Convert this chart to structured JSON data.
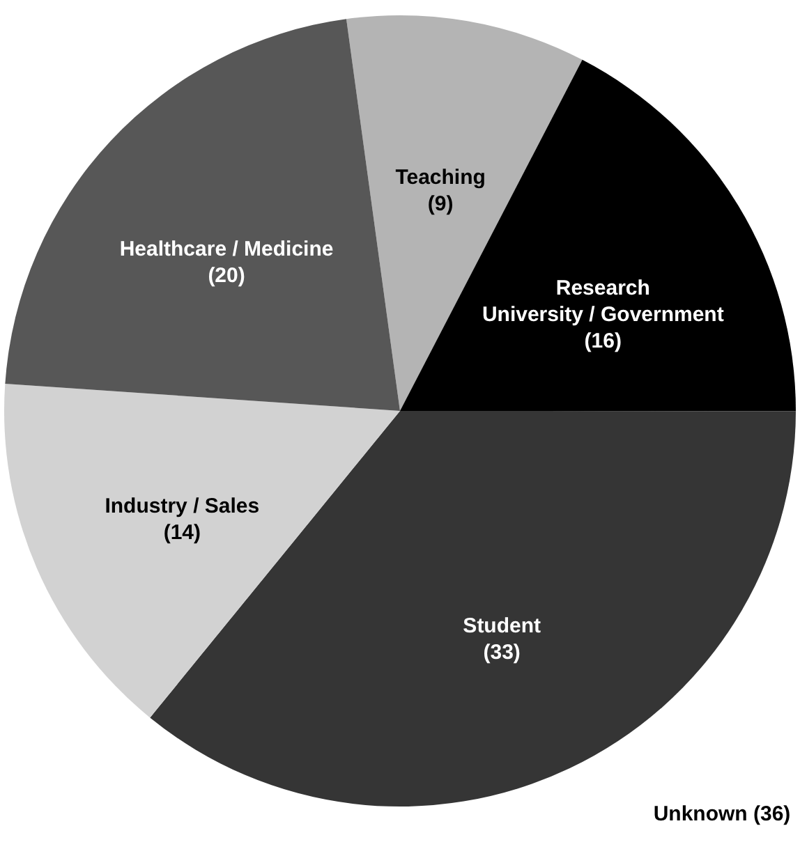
{
  "chart_data": {
    "type": "pie",
    "categories": [
      "Teaching",
      "Research\nUniversity / Government",
      "Student",
      "Industry / Sales",
      "Healthcare / Medicine"
    ],
    "values": [
      9,
      16,
      33,
      14,
      20
    ],
    "colors": [
      "#b4b4b4",
      "#000000",
      "#353535",
      "#d2d2d2",
      "#575757"
    ],
    "value_labels": [
      "(9)",
      "(16)",
      "(33)",
      "(14)",
      "(20)"
    ],
    "annotations": [
      "Unknown (36)"
    ]
  }
}
